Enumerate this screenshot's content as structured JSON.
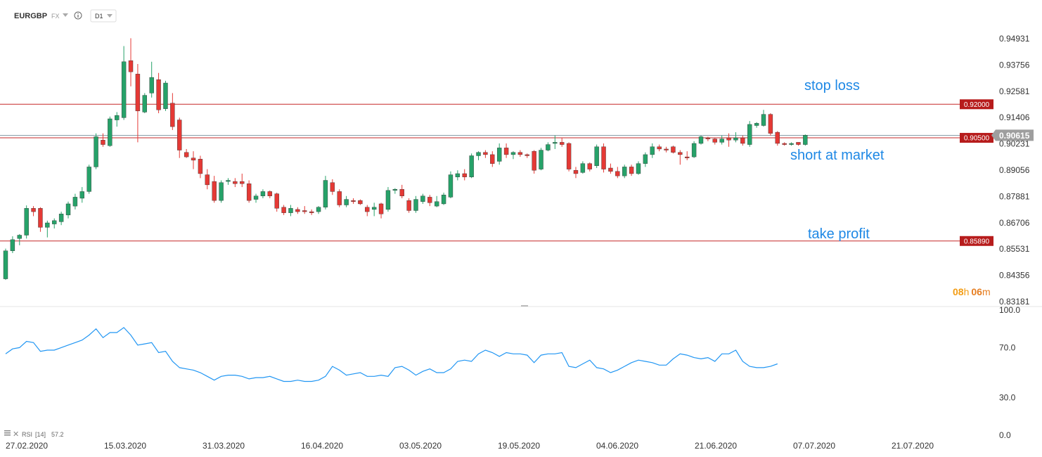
{
  "header": {
    "symbol": "EURGBP",
    "market": "FX",
    "timeframe": "D1",
    "info_icon": "info-icon",
    "dropdown_icon": "chevron-down-icon"
  },
  "countdown": {
    "hours": "08",
    "h": "h",
    "minutes": "06",
    "m": "m"
  },
  "rsi_header": {
    "label": "RSI",
    "period": "[14]",
    "value": "57.2"
  },
  "colors": {
    "up": "#26a269",
    "down": "#e53935",
    "level_line": "#c62828",
    "level_tag": "#b71c1c",
    "price_tag": "#9e9e9e",
    "rsi_line": "#2196f3",
    "annotation": "#1e88e5",
    "countdown_h": "#f39c12",
    "countdown_m": "#e67e22"
  },
  "chart_data": [
    {
      "type": "candlestick",
      "symbol": "EURGBP",
      "timeframe": "D1",
      "x_ticks": [
        "27.02.2020",
        "15.03.2020",
        "31.03.2020",
        "16.04.2020",
        "03.05.2020",
        "19.05.2020",
        "04.06.2020",
        "21.06.2020",
        "07.07.2020",
        "21.07.2020"
      ],
      "y_ticks": [
        "0.94931",
        "0.93756",
        "0.92581",
        "0.91406",
        "0.90231",
        "0.89056",
        "0.87881",
        "0.86706",
        "0.85531",
        "0.84356",
        "0.83181"
      ],
      "ylim": [
        0.83181,
        0.9552
      ],
      "current_price": "0.90615",
      "levels": [
        {
          "name": "stop loss",
          "price": "0.92000"
        },
        {
          "name": "short at market",
          "price": "0.90500"
        },
        {
          "name": "take profit",
          "price": "0.85890"
        }
      ],
      "candles": [
        {
          "o": 0.842,
          "h": 0.8555,
          "l": 0.8415,
          "c": 0.8545
        },
        {
          "o": 0.8545,
          "h": 0.861,
          "l": 0.8535,
          "c": 0.8595
        },
        {
          "o": 0.86,
          "h": 0.862,
          "l": 0.857,
          "c": 0.8615
        },
        {
          "o": 0.8615,
          "h": 0.8748,
          "l": 0.86,
          "c": 0.8735
        },
        {
          "o": 0.8735,
          "h": 0.8745,
          "l": 0.87,
          "c": 0.872
        },
        {
          "o": 0.8735,
          "h": 0.874,
          "l": 0.863,
          "c": 0.865
        },
        {
          "o": 0.865,
          "h": 0.868,
          "l": 0.8605,
          "c": 0.867
        },
        {
          "o": 0.8665,
          "h": 0.869,
          "l": 0.8645,
          "c": 0.868
        },
        {
          "o": 0.8675,
          "h": 0.872,
          "l": 0.866,
          "c": 0.871
        },
        {
          "o": 0.8705,
          "h": 0.8765,
          "l": 0.869,
          "c": 0.8755
        },
        {
          "o": 0.8745,
          "h": 0.88,
          "l": 0.873,
          "c": 0.8785
        },
        {
          "o": 0.878,
          "h": 0.883,
          "l": 0.876,
          "c": 0.881
        },
        {
          "o": 0.881,
          "h": 0.893,
          "l": 0.88,
          "c": 0.892
        },
        {
          "o": 0.892,
          "h": 0.907,
          "l": 0.891,
          "c": 0.9055
        },
        {
          "o": 0.904,
          "h": 0.907,
          "l": 0.901,
          "c": 0.902
        },
        {
          "o": 0.9015,
          "h": 0.9145,
          "l": 0.901,
          "c": 0.9135
        },
        {
          "o": 0.913,
          "h": 0.9165,
          "l": 0.91,
          "c": 0.915
        },
        {
          "o": 0.914,
          "h": 0.946,
          "l": 0.913,
          "c": 0.939
        },
        {
          "o": 0.9395,
          "h": 0.9495,
          "l": 0.928,
          "c": 0.9345
        },
        {
          "o": 0.9335,
          "h": 0.938,
          "l": 0.903,
          "c": 0.917
        },
        {
          "o": 0.9165,
          "h": 0.925,
          "l": 0.916,
          "c": 0.924
        },
        {
          "o": 0.925,
          "h": 0.939,
          "l": 0.923,
          "c": 0.932
        },
        {
          "o": 0.931,
          "h": 0.934,
          "l": 0.916,
          "c": 0.9175
        },
        {
          "o": 0.918,
          "h": 0.9305,
          "l": 0.917,
          "c": 0.9295
        },
        {
          "o": 0.9205,
          "h": 0.925,
          "l": 0.9085,
          "c": 0.91
        },
        {
          "o": 0.913,
          "h": 0.914,
          "l": 0.896,
          "c": 0.8995
        },
        {
          "o": 0.8985,
          "h": 0.9,
          "l": 0.896,
          "c": 0.8965
        },
        {
          "o": 0.896,
          "h": 0.899,
          "l": 0.891,
          "c": 0.895
        },
        {
          "o": 0.8955,
          "h": 0.897,
          "l": 0.887,
          "c": 0.889
        },
        {
          "o": 0.8885,
          "h": 0.891,
          "l": 0.882,
          "c": 0.884
        },
        {
          "o": 0.8855,
          "h": 0.888,
          "l": 0.876,
          "c": 0.877
        },
        {
          "o": 0.877,
          "h": 0.886,
          "l": 0.876,
          "c": 0.885
        },
        {
          "o": 0.8855,
          "h": 0.887,
          "l": 0.884,
          "c": 0.886
        },
        {
          "o": 0.8855,
          "h": 0.887,
          "l": 0.883,
          "c": 0.8845
        },
        {
          "o": 0.8855,
          "h": 0.889,
          "l": 0.883,
          "c": 0.8845
        },
        {
          "o": 0.8845,
          "h": 0.886,
          "l": 0.876,
          "c": 0.877
        },
        {
          "o": 0.8775,
          "h": 0.88,
          "l": 0.876,
          "c": 0.879
        },
        {
          "o": 0.879,
          "h": 0.882,
          "l": 0.878,
          "c": 0.881
        },
        {
          "o": 0.881,
          "h": 0.8815,
          "l": 0.878,
          "c": 0.879
        },
        {
          "o": 0.88,
          "h": 0.8805,
          "l": 0.872,
          "c": 0.8735
        },
        {
          "o": 0.874,
          "h": 0.875,
          "l": 0.8705,
          "c": 0.8715
        },
        {
          "o": 0.8715,
          "h": 0.875,
          "l": 0.87,
          "c": 0.8735
        },
        {
          "o": 0.873,
          "h": 0.874,
          "l": 0.871,
          "c": 0.872
        },
        {
          "o": 0.8725,
          "h": 0.8745,
          "l": 0.871,
          "c": 0.872
        },
        {
          "o": 0.872,
          "h": 0.873,
          "l": 0.8705,
          "c": 0.8715
        },
        {
          "o": 0.872,
          "h": 0.8745,
          "l": 0.871,
          "c": 0.874
        },
        {
          "o": 0.874,
          "h": 0.888,
          "l": 0.873,
          "c": 0.886
        },
        {
          "o": 0.885,
          "h": 0.8865,
          "l": 0.8795,
          "c": 0.881
        },
        {
          "o": 0.881,
          "h": 0.882,
          "l": 0.874,
          "c": 0.875
        },
        {
          "o": 0.875,
          "h": 0.879,
          "l": 0.874,
          "c": 0.8775
        },
        {
          "o": 0.877,
          "h": 0.878,
          "l": 0.8755,
          "c": 0.8765
        },
        {
          "o": 0.877,
          "h": 0.8775,
          "l": 0.875,
          "c": 0.8755
        },
        {
          "o": 0.874,
          "h": 0.875,
          "l": 0.87,
          "c": 0.872
        },
        {
          "o": 0.873,
          "h": 0.876,
          "l": 0.87,
          "c": 0.874
        },
        {
          "o": 0.8755,
          "h": 0.876,
          "l": 0.869,
          "c": 0.871
        },
        {
          "o": 0.873,
          "h": 0.883,
          "l": 0.872,
          "c": 0.8815
        },
        {
          "o": 0.8815,
          "h": 0.8825,
          "l": 0.88,
          "c": 0.882
        },
        {
          "o": 0.882,
          "h": 0.884,
          "l": 0.878,
          "c": 0.879
        },
        {
          "o": 0.877,
          "h": 0.878,
          "l": 0.8715,
          "c": 0.8725
        },
        {
          "o": 0.8725,
          "h": 0.879,
          "l": 0.8715,
          "c": 0.8775
        },
        {
          "o": 0.8765,
          "h": 0.88,
          "l": 0.8755,
          "c": 0.879
        },
        {
          "o": 0.8785,
          "h": 0.8795,
          "l": 0.8745,
          "c": 0.876
        },
        {
          "o": 0.8745,
          "h": 0.879,
          "l": 0.874,
          "c": 0.8765
        },
        {
          "o": 0.8755,
          "h": 0.8805,
          "l": 0.875,
          "c": 0.8795
        },
        {
          "o": 0.8785,
          "h": 0.89,
          "l": 0.878,
          "c": 0.8885
        },
        {
          "o": 0.8875,
          "h": 0.8905,
          "l": 0.886,
          "c": 0.889
        },
        {
          "o": 0.889,
          "h": 0.891,
          "l": 0.886,
          "c": 0.8875
        },
        {
          "o": 0.8875,
          "h": 0.898,
          "l": 0.887,
          "c": 0.897
        },
        {
          "o": 0.897,
          "h": 0.899,
          "l": 0.895,
          "c": 0.8985
        },
        {
          "o": 0.8985,
          "h": 0.8995,
          "l": 0.896,
          "c": 0.8975
        },
        {
          "o": 0.8975,
          "h": 0.899,
          "l": 0.892,
          "c": 0.8935
        },
        {
          "o": 0.8945,
          "h": 0.9025,
          "l": 0.893,
          "c": 0.9005
        },
        {
          "o": 0.9005,
          "h": 0.9025,
          "l": 0.896,
          "c": 0.8975
        },
        {
          "o": 0.8975,
          "h": 0.899,
          "l": 0.8955,
          "c": 0.8985
        },
        {
          "o": 0.8985,
          "h": 0.8995,
          "l": 0.8965,
          "c": 0.8975
        },
        {
          "o": 0.8975,
          "h": 0.898,
          "l": 0.896,
          "c": 0.897
        },
        {
          "o": 0.899,
          "h": 0.8995,
          "l": 0.889,
          "c": 0.8905
        },
        {
          "o": 0.891,
          "h": 0.9005,
          "l": 0.8905,
          "c": 0.8995
        },
        {
          "o": 0.8995,
          "h": 0.903,
          "l": 0.899,
          "c": 0.902
        },
        {
          "o": 0.9025,
          "h": 0.906,
          "l": 0.9,
          "c": 0.903
        },
        {
          "o": 0.903,
          "h": 0.905,
          "l": 0.901,
          "c": 0.902
        },
        {
          "o": 0.9025,
          "h": 0.903,
          "l": 0.89,
          "c": 0.891
        },
        {
          "o": 0.8905,
          "h": 0.892,
          "l": 0.887,
          "c": 0.889
        },
        {
          "o": 0.8895,
          "h": 0.8945,
          "l": 0.889,
          "c": 0.8935
        },
        {
          "o": 0.8935,
          "h": 0.894,
          "l": 0.89,
          "c": 0.891
        },
        {
          "o": 0.8925,
          "h": 0.902,
          "l": 0.8915,
          "c": 0.901
        },
        {
          "o": 0.901,
          "h": 0.9025,
          "l": 0.8895,
          "c": 0.891
        },
        {
          "o": 0.8915,
          "h": 0.8935,
          "l": 0.889,
          "c": 0.89
        },
        {
          "o": 0.89,
          "h": 0.892,
          "l": 0.887,
          "c": 0.888
        },
        {
          "o": 0.888,
          "h": 0.893,
          "l": 0.887,
          "c": 0.892
        },
        {
          "o": 0.892,
          "h": 0.893,
          "l": 0.888,
          "c": 0.889
        },
        {
          "o": 0.889,
          "h": 0.8945,
          "l": 0.8885,
          "c": 0.8935
        },
        {
          "o": 0.8935,
          "h": 0.8985,
          "l": 0.892,
          "c": 0.8975
        },
        {
          "o": 0.8975,
          "h": 0.9025,
          "l": 0.896,
          "c": 0.901
        },
        {
          "o": 0.901,
          "h": 0.902,
          "l": 0.899,
          "c": 0.9
        },
        {
          "o": 0.9,
          "h": 0.901,
          "l": 0.8985,
          "c": 0.8995
        },
        {
          "o": 0.901,
          "h": 0.9015,
          "l": 0.898,
          "c": 0.8985
        },
        {
          "o": 0.8985,
          "h": 0.8995,
          "l": 0.893,
          "c": 0.8975
        },
        {
          "o": 0.8965,
          "h": 0.899,
          "l": 0.895,
          "c": 0.896
        },
        {
          "o": 0.8965,
          "h": 0.9035,
          "l": 0.896,
          "c": 0.9025
        },
        {
          "o": 0.9025,
          "h": 0.906,
          "l": 0.902,
          "c": 0.9055
        },
        {
          "o": 0.905,
          "h": 0.9055,
          "l": 0.9035,
          "c": 0.9045
        },
        {
          "o": 0.9045,
          "h": 0.905,
          "l": 0.902,
          "c": 0.903
        },
        {
          "o": 0.903,
          "h": 0.906,
          "l": 0.902,
          "c": 0.9045
        },
        {
          "o": 0.905,
          "h": 0.907,
          "l": 0.901,
          "c": 0.904
        },
        {
          "o": 0.904,
          "h": 0.9075,
          "l": 0.903,
          "c": 0.905
        },
        {
          "o": 0.905,
          "h": 0.906,
          "l": 0.9015,
          "c": 0.9025
        },
        {
          "o": 0.902,
          "h": 0.9125,
          "l": 0.901,
          "c": 0.911
        },
        {
          "o": 0.9105,
          "h": 0.912,
          "l": 0.9095,
          "c": 0.9115
        },
        {
          "o": 0.9105,
          "h": 0.9175,
          "l": 0.91,
          "c": 0.9155
        },
        {
          "o": 0.9155,
          "h": 0.916,
          "l": 0.906,
          "c": 0.907
        },
        {
          "o": 0.9075,
          "h": 0.908,
          "l": 0.9015,
          "c": 0.9025
        },
        {
          "o": 0.9025,
          "h": 0.903,
          "l": 0.9015,
          "c": 0.902
        },
        {
          "o": 0.902,
          "h": 0.903,
          "l": 0.9015,
          "c": 0.9025
        },
        {
          "o": 0.903,
          "h": 0.903,
          "l": 0.9015,
          "c": 0.902
        },
        {
          "o": 0.902,
          "h": 0.9065,
          "l": 0.9015,
          "c": 0.9062
        }
      ]
    },
    {
      "type": "line",
      "name": "RSI",
      "period": 14,
      "current_value": "57.2",
      "ylim": [
        0,
        100
      ],
      "y_ticks": [
        "100.0",
        "70.0",
        "30.0",
        "0.0"
      ],
      "values": [
        65,
        69,
        70,
        75,
        74,
        67,
        68,
        68,
        70,
        72,
        74,
        76,
        80,
        85,
        78,
        82,
        82,
        86,
        80,
        72,
        73,
        74,
        66,
        67,
        59,
        54,
        53,
        52,
        50,
        47,
        44,
        47,
        48,
        48,
        47,
        45,
        46,
        46,
        47,
        45,
        43,
        43,
        44,
        43,
        43,
        44,
        47,
        55,
        52,
        48,
        49,
        50,
        47,
        47,
        48,
        47,
        54,
        55,
        52,
        48,
        51,
        53,
        50,
        50,
        53,
        59,
        60,
        59,
        65,
        68,
        66,
        63,
        66,
        65,
        65,
        64,
        58,
        64,
        65,
        65,
        66,
        55,
        54,
        57,
        60,
        54,
        53,
        50,
        52,
        55,
        58,
        60,
        59,
        58,
        56,
        56,
        61,
        65,
        64,
        62,
        61,
        62,
        59,
        65,
        65,
        68,
        59,
        55,
        54,
        54,
        55,
        57
      ]
    }
  ],
  "annotations": {
    "stop_loss": "stop loss",
    "short": "short at market",
    "take_profit": "take profit"
  }
}
